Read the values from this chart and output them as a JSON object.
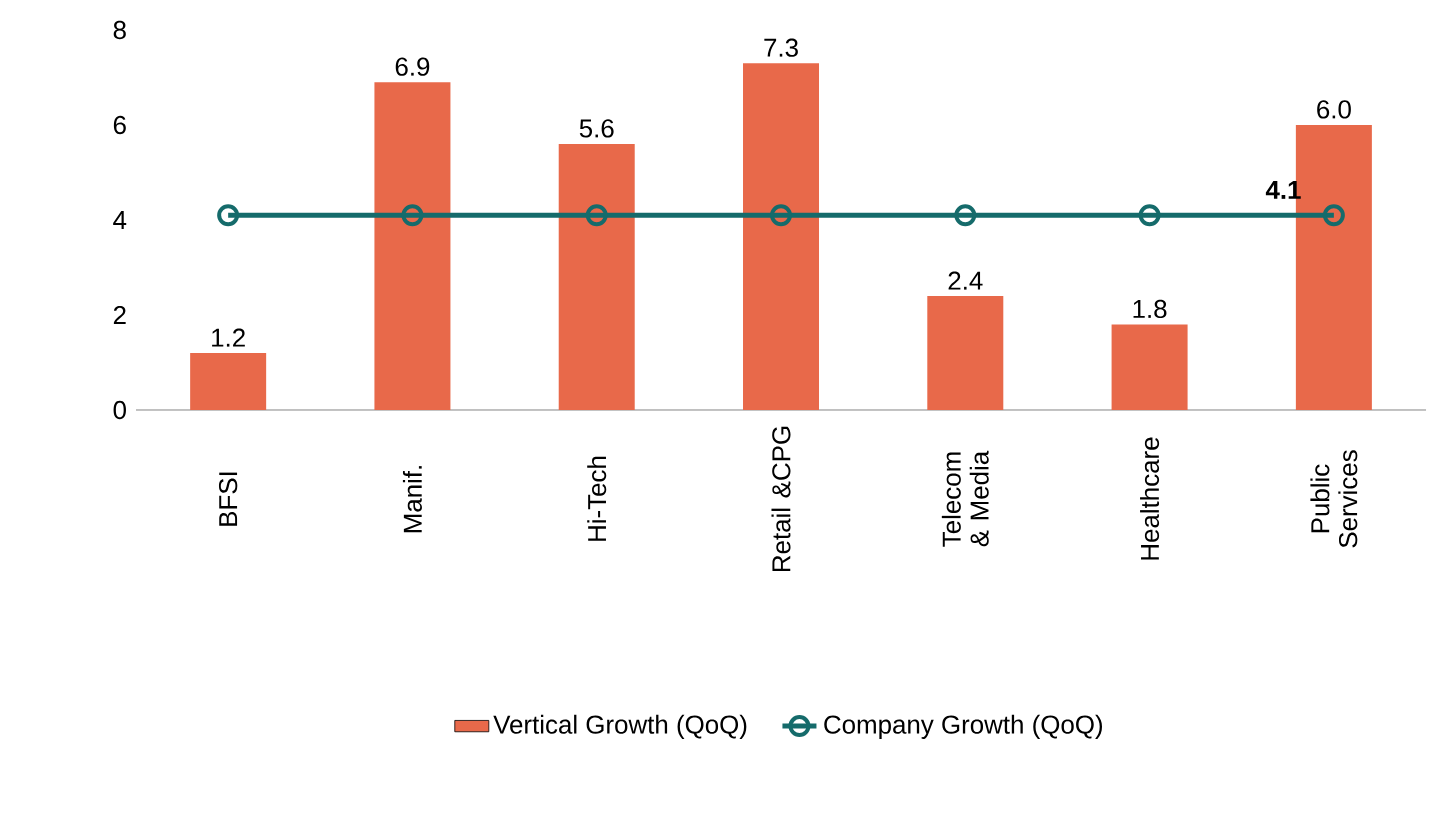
{
  "chart_data": {
    "type": "bar",
    "categories": [
      "BFSI",
      "Manif.",
      "Hi-Tech",
      "Retail &CPG",
      "Telecom & Media",
      "Healthcare",
      "Public Services"
    ],
    "series": [
      {
        "name": "Vertical Growth (QoQ)",
        "color": "#e8694a",
        "values": [
          1.2,
          6.9,
          5.6,
          7.3,
          2.4,
          1.8,
          6.0
        ],
        "value_labels": [
          "1.2",
          "6.9",
          "5.6",
          "7.3",
          "2.4",
          "1.8",
          "6.0"
        ]
      },
      {
        "name": "Company Growth (QoQ)",
        "type": "line",
        "color": "#156b6b",
        "marker": "circle",
        "values": [
          4.1,
          4.1,
          4.1,
          4.1,
          4.1,
          4.1,
          4.1
        ],
        "value_labels": [
          null,
          null,
          null,
          null,
          null,
          null,
          "4.1"
        ]
      }
    ],
    "ylim": [
      0,
      8
    ],
    "yticks": [
      0,
      2,
      4,
      6,
      8
    ],
    "grid": false,
    "legend": "bottom"
  }
}
